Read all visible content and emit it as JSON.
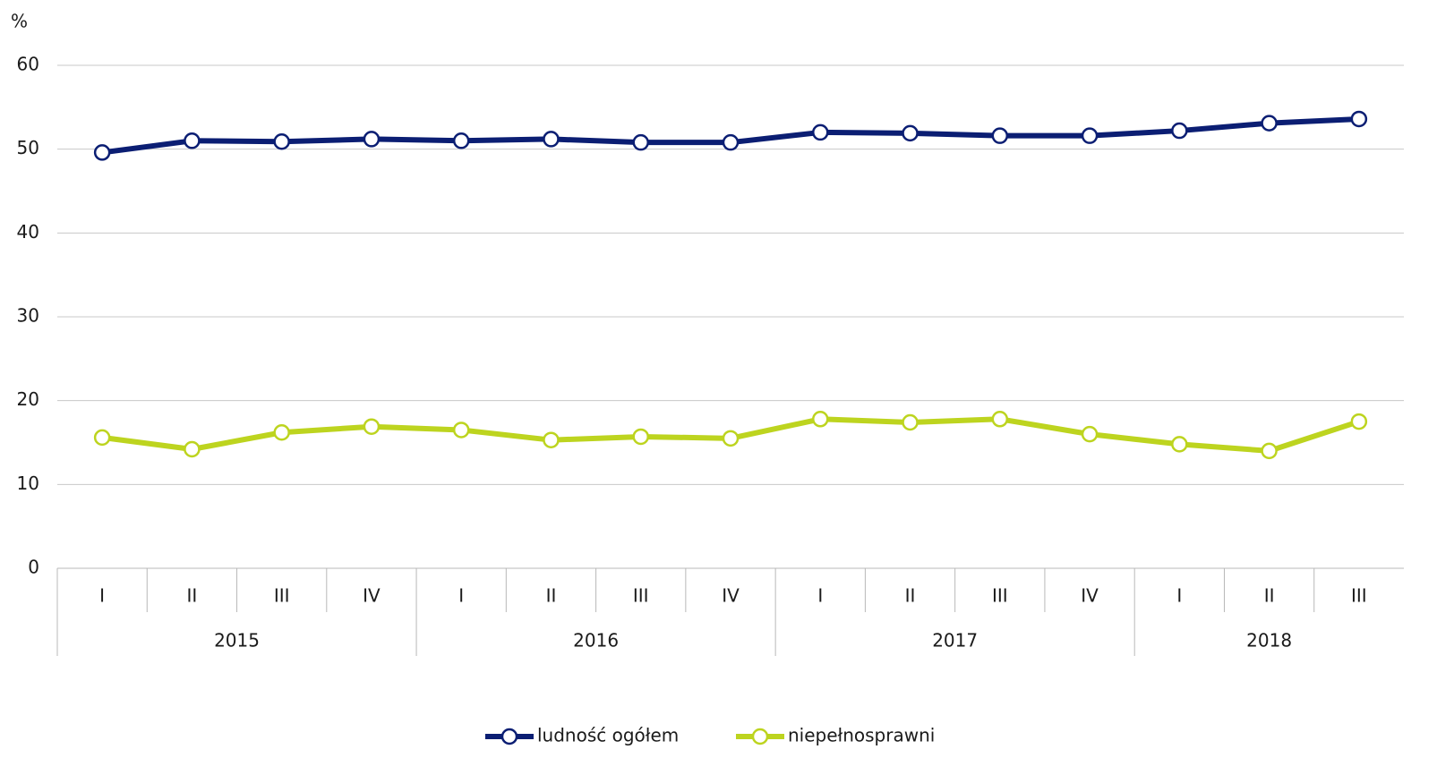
{
  "chart_data": {
    "type": "line",
    "y_label": "%",
    "category_groups": [
      {
        "label": "2015",
        "categories": [
          "I",
          "II",
          "III",
          "IV"
        ]
      },
      {
        "label": "2016",
        "categories": [
          "I",
          "II",
          "III",
          "IV"
        ]
      },
      {
        "label": "2017",
        "categories": [
          "I",
          "II",
          "III",
          "IV"
        ]
      },
      {
        "label": "2018",
        "categories": [
          "I",
          "II",
          "III"
        ]
      }
    ],
    "series": [
      {
        "name": "ludność ogółem",
        "color": "#0b1e73",
        "values": [
          49.6,
          51.0,
          50.9,
          51.2,
          51.0,
          51.2,
          50.8,
          50.8,
          52.0,
          51.9,
          51.6,
          51.6,
          52.2,
          53.1,
          53.6
        ]
      },
      {
        "name": "niepełnosprawni",
        "color": "#bdd41f",
        "values": [
          15.6,
          14.2,
          16.2,
          16.9,
          16.5,
          15.3,
          15.7,
          15.5,
          17.8,
          17.4,
          17.8,
          16.0,
          14.8,
          14.0,
          17.5
        ]
      }
    ],
    "ylim": [
      0,
      60
    ],
    "yticks": [
      0,
      10,
      20,
      30,
      40,
      50,
      60
    ],
    "grid": true,
    "legend": "bottom"
  }
}
